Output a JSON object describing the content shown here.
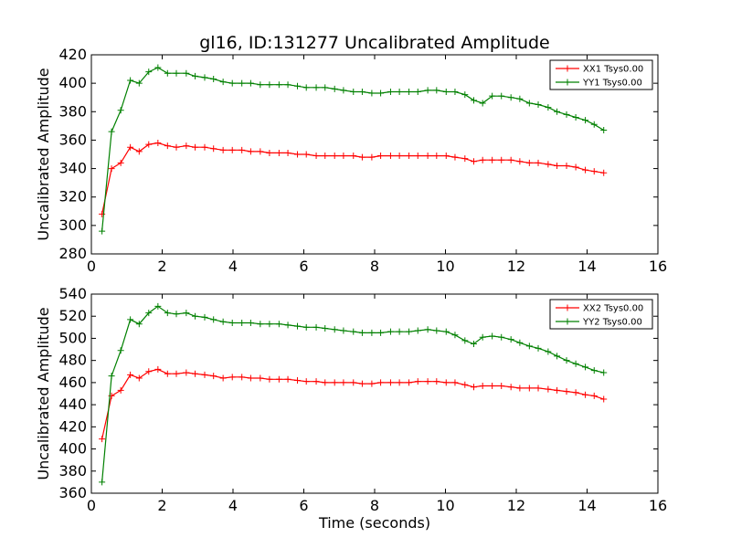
{
  "figure": {
    "title": "gl16, ID:131277 Uncalibrated Amplitude",
    "xlabel": "Time (seconds)"
  },
  "chart_data": [
    {
      "type": "line",
      "ylabel": "Uncalibrated Amplitude",
      "xlim": [
        0,
        16
      ],
      "ylim": [
        280,
        420
      ],
      "xticks": [
        0,
        2,
        4,
        6,
        8,
        10,
        12,
        14,
        16
      ],
      "yticks": [
        280,
        300,
        320,
        340,
        360,
        380,
        400,
        420
      ],
      "grid": false,
      "legend_position": "top-right",
      "x": [
        0.3,
        0.57,
        0.83,
        1.1,
        1.35,
        1.62,
        1.88,
        2.15,
        2.4,
        2.68,
        2.93,
        3.2,
        3.45,
        3.72,
        3.98,
        4.25,
        4.5,
        4.77,
        5.03,
        5.3,
        5.55,
        5.82,
        6.07,
        6.35,
        6.6,
        6.87,
        7.12,
        7.4,
        7.65,
        7.92,
        8.17,
        8.45,
        8.7,
        8.97,
        9.22,
        9.5,
        9.75,
        10.02,
        10.27,
        10.55,
        10.8,
        11.05,
        11.32,
        11.58,
        11.85,
        12.1,
        12.37,
        12.62,
        12.9,
        13.15,
        13.42,
        13.68,
        13.95,
        14.2,
        14.47
      ],
      "series": [
        {
          "name": "XX1 Tsys0.00",
          "color": "#ff0000",
          "values": [
            308,
            340,
            344,
            355,
            352,
            357,
            358,
            356,
            355,
            356,
            355,
            355,
            354,
            353,
            353,
            353,
            352,
            352,
            351,
            351,
            351,
            350,
            350,
            349,
            349,
            349,
            349,
            349,
            348,
            348,
            349,
            349,
            349,
            349,
            349,
            349,
            349,
            349,
            348,
            347,
            345,
            346,
            346,
            346,
            346,
            345,
            344,
            344,
            343,
            342,
            342,
            341,
            339,
            338,
            337
          ]
        },
        {
          "name": "YY1 Tsys0.00",
          "color": "#008000",
          "values": [
            296,
            366,
            381,
            402,
            400,
            408,
            411,
            407,
            407,
            407,
            405,
            404,
            403,
            401,
            400,
            400,
            400,
            399,
            399,
            399,
            399,
            398,
            397,
            397,
            397,
            396,
            395,
            394,
            394,
            393,
            393,
            394,
            394,
            394,
            394,
            395,
            395,
            394,
            394,
            392,
            388,
            386,
            391,
            391,
            390,
            389,
            386,
            385,
            383,
            380,
            378,
            376,
            374,
            371,
            367
          ]
        }
      ]
    },
    {
      "type": "line",
      "ylabel": "Uncalibrated Amplitude",
      "xlabel": "Time (seconds)",
      "xlim": [
        0,
        16
      ],
      "ylim": [
        360,
        540
      ],
      "xticks": [
        0,
        2,
        4,
        6,
        8,
        10,
        12,
        14,
        16
      ],
      "yticks": [
        360,
        380,
        400,
        420,
        440,
        460,
        480,
        500,
        520,
        540
      ],
      "grid": false,
      "legend_position": "top-right",
      "x": [
        0.3,
        0.57,
        0.83,
        1.1,
        1.35,
        1.62,
        1.88,
        2.15,
        2.4,
        2.68,
        2.93,
        3.2,
        3.45,
        3.72,
        3.98,
        4.25,
        4.5,
        4.77,
        5.03,
        5.3,
        5.55,
        5.82,
        6.07,
        6.35,
        6.6,
        6.87,
        7.12,
        7.4,
        7.65,
        7.92,
        8.17,
        8.45,
        8.7,
        8.97,
        9.22,
        9.5,
        9.75,
        10.02,
        10.27,
        10.55,
        10.8,
        11.05,
        11.32,
        11.58,
        11.85,
        12.1,
        12.37,
        12.62,
        12.9,
        13.15,
        13.42,
        13.68,
        13.95,
        14.2,
        14.47
      ],
      "series": [
        {
          "name": "XX2 Tsys0.00",
          "color": "#ff0000",
          "values": [
            409,
            448,
            453,
            467,
            464,
            470,
            472,
            468,
            468,
            469,
            468,
            467,
            466,
            464,
            465,
            465,
            464,
            464,
            463,
            463,
            463,
            462,
            461,
            461,
            460,
            460,
            460,
            460,
            459,
            459,
            460,
            460,
            460,
            460,
            461,
            461,
            461,
            460,
            460,
            458,
            456,
            457,
            457,
            457,
            456,
            455,
            455,
            455,
            454,
            453,
            452,
            451,
            449,
            448,
            445
          ]
        },
        {
          "name": "YY2 Tsys0.00",
          "color": "#008000",
          "values": [
            370,
            466,
            489,
            517,
            513,
            523,
            529,
            523,
            522,
            523,
            520,
            519,
            517,
            515,
            514,
            514,
            514,
            513,
            513,
            513,
            512,
            511,
            510,
            510,
            509,
            508,
            507,
            506,
            505,
            505,
            505,
            506,
            506,
            506,
            507,
            508,
            507,
            506,
            503,
            498,
            495,
            501,
            502,
            501,
            499,
            496,
            493,
            491,
            488,
            484,
            480,
            477,
            474,
            471,
            469
          ]
        }
      ]
    }
  ]
}
